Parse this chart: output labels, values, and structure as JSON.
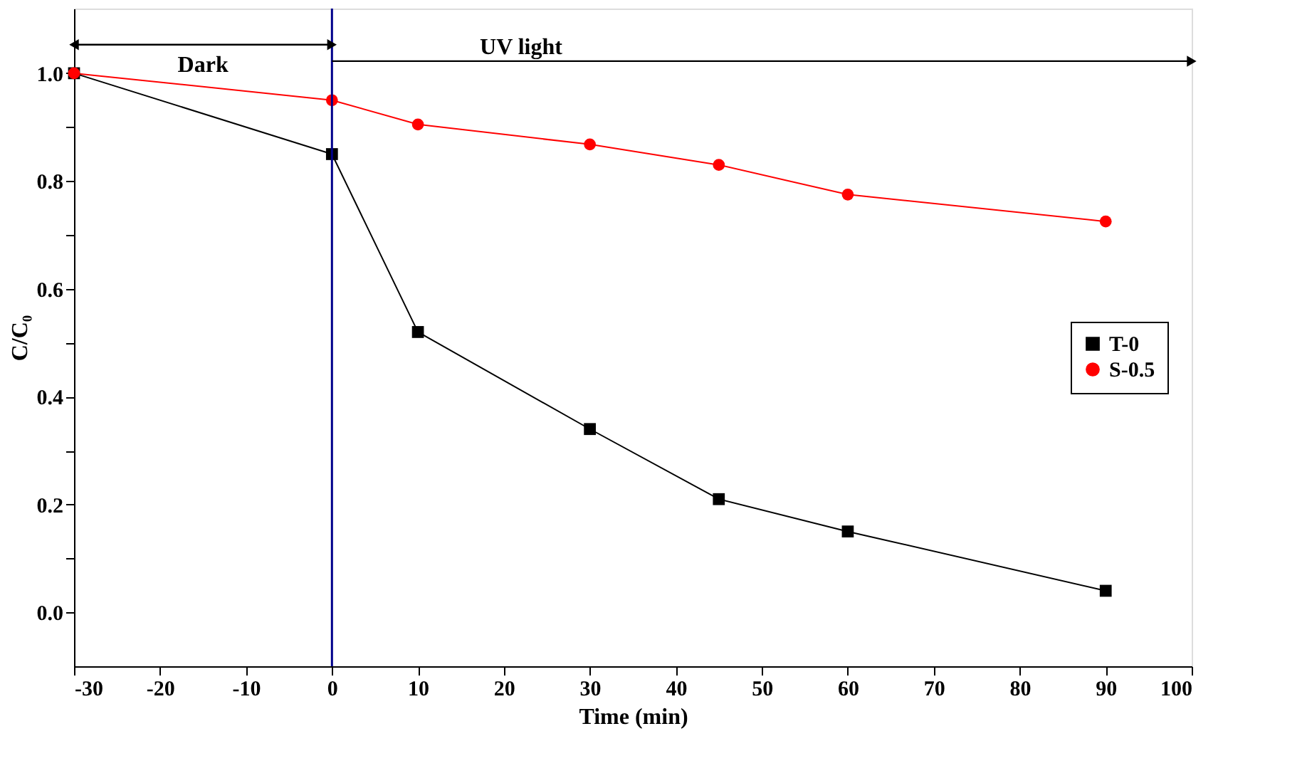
{
  "chart_data": {
    "type": "line",
    "xlabel": "Time (min)",
    "ylabel": "C/C₀",
    "x": [
      -30,
      0,
      10,
      30,
      45,
      60,
      90
    ],
    "series": [
      {
        "name": "T-0",
        "color": "#000000",
        "marker": "square",
        "values": [
          1.0,
          0.85,
          0.52,
          0.34,
          0.21,
          0.15,
          0.04
        ]
      },
      {
        "name": "S-0.5",
        "color": "#ff0000",
        "marker": "circle",
        "values": [
          1.0,
          0.95,
          0.905,
          0.868,
          0.83,
          0.775,
          0.725
        ]
      }
    ],
    "xlim": [
      -30,
      100
    ],
    "xticks": [
      -30,
      -20,
      -10,
      0,
      10,
      20,
      30,
      40,
      50,
      60,
      70,
      80,
      90,
      100
    ],
    "ylim": [
      -0.1,
      1.12
    ],
    "yticks": [
      {
        "value": 0,
        "label": "0.0"
      },
      {
        "value": 0.1,
        "label": null
      },
      {
        "value": 0.2,
        "label": "0.2"
      },
      {
        "value": 0.3,
        "label": null
      },
      {
        "value": 0.4,
        "label": "0.4"
      },
      {
        "value": 0.5,
        "label": null
      },
      {
        "value": 0.6,
        "label": "0.6"
      },
      {
        "value": 0.7,
        "label": null
      },
      {
        "value": 0.8,
        "label": "0.8"
      },
      {
        "value": 0.9,
        "label": null
      },
      {
        "value": 1.0,
        "label": "1.0"
      }
    ],
    "ref_lines": [
      {
        "axis": "x",
        "value": 0,
        "color": "#00008b"
      }
    ],
    "annotations": [
      "Dark",
      "UV light"
    ],
    "legend": "right",
    "grid": false,
    "line_style": "solid"
  }
}
